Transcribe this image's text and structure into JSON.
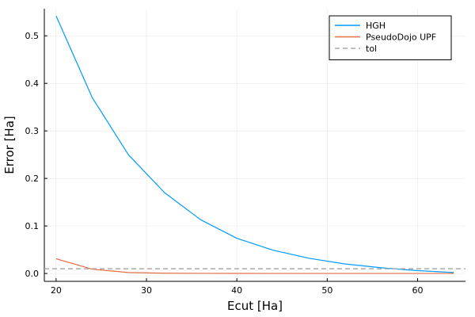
{
  "chart_data": {
    "type": "line",
    "xlabel": "Ecut [Ha]",
    "ylabel": "Error [Ha]",
    "xlim": [
      18.7,
      65.3
    ],
    "ylim": [
      -0.0165,
      0.557
    ],
    "xticks": [
      20,
      30,
      40,
      50,
      60
    ],
    "yticks": [
      0.0,
      0.1,
      0.2,
      0.3,
      0.4,
      0.5
    ],
    "xtick_labels": [
      "20",
      "30",
      "40",
      "50",
      "60"
    ],
    "ytick_labels": [
      "0.0",
      "0.1",
      "0.2",
      "0.3",
      "0.4",
      "0.5"
    ],
    "grid": true,
    "legend_position": "top-right",
    "x": [
      20,
      24,
      28,
      32,
      36,
      40,
      44,
      48,
      52,
      56,
      60,
      64
    ],
    "series": [
      {
        "name": "HGH",
        "color": "#009AFA",
        "style": "solid",
        "values": [
          0.542,
          0.37,
          0.25,
          0.17,
          0.113,
          0.074,
          0.049,
          0.032,
          0.02,
          0.012,
          0.006,
          0.002
        ]
      },
      {
        "name": "PseudoDojo UPF",
        "color": "#E26F46",
        "style": "solid",
        "values": [
          0.031,
          0.009,
          0.002,
          0.0006,
          0.0003,
          0.0002,
          0.0001,
          0.0001,
          0.0001,
          0.0001,
          0.0001,
          0.0001
        ]
      }
    ],
    "hlines": [
      {
        "name": "tol",
        "color": "#AAAAAA",
        "style": "dashed",
        "value": 0.01
      }
    ]
  }
}
